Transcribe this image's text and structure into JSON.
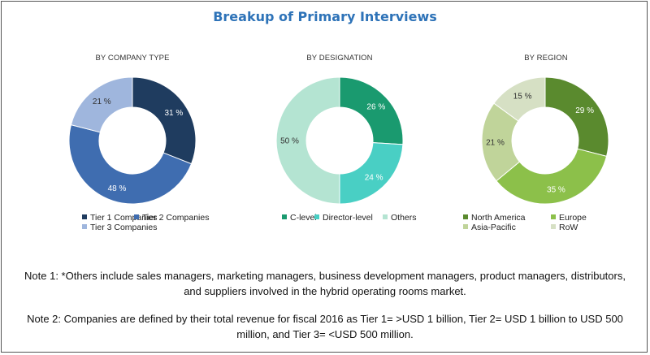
{
  "title": "Breakup of Primary Interviews",
  "chart_data": [
    {
      "type": "pie",
      "donut": true,
      "title": "BY COMPANY TYPE",
      "categories": [
        "Tier 1 Companies",
        "Tier 2 Companies",
        "Tier 3 Companies"
      ],
      "values": [
        31,
        48,
        21
      ],
      "labels": [
        "31 %",
        "48 %",
        "21 %"
      ],
      "colors": [
        "#1f3c5f",
        "#3f6db0",
        "#9fb6dd"
      ],
      "label_colors": [
        "#ffffff",
        "#ffffff",
        "#333333"
      ],
      "legend_placement": "bottom"
    },
    {
      "type": "pie",
      "donut": true,
      "title": "BY DESIGNATION",
      "categories": [
        "C-level",
        "Director-level",
        "Others"
      ],
      "values": [
        26,
        24,
        50
      ],
      "labels": [
        "26 %",
        "24 %",
        "50 %"
      ],
      "colors": [
        "#1a9a6f",
        "#49cfc4",
        "#b4e4d2"
      ],
      "label_colors": [
        "#ffffff",
        "#ffffff",
        "#333333"
      ],
      "legend_placement": "bottom"
    },
    {
      "type": "pie",
      "donut": true,
      "title": "BY REGION",
      "categories": [
        "North America",
        "Europe",
        "Asia-Pacific",
        "RoW"
      ],
      "values": [
        29,
        35,
        21,
        15
      ],
      "labels": [
        "29 %",
        "35 %",
        "21 %",
        "15 %"
      ],
      "colors": [
        "#5a8a2e",
        "#8cc04a",
        "#c0d49a",
        "#d6e0c4"
      ],
      "label_colors": [
        "#ffffff",
        "#ffffff",
        "#333333",
        "#333333"
      ],
      "legend_placement": "bottom"
    }
  ],
  "notes": [
    "Note 1: *Others include sales managers, marketing managers, business development managers, product managers, distributors, and suppliers involved in the hybrid operating rooms market.",
    "Note 2: Companies are defined by their total revenue for fiscal 2016 as Tier 1= >USD 1 billion, Tier 2= USD 1 billion to USD 500 million, and Tier 3= <USD 500 million."
  ]
}
